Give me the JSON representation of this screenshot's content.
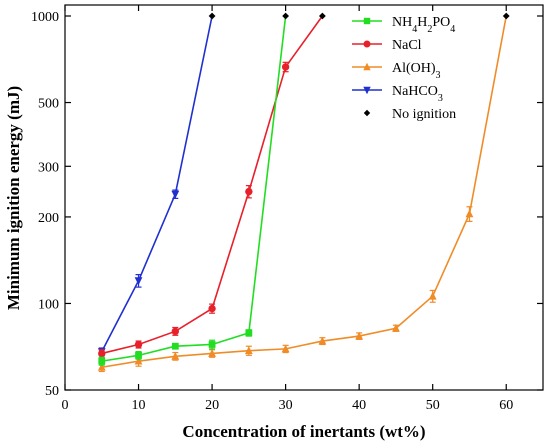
{
  "chart_data": {
    "type": "line",
    "title": "",
    "xlabel": "Concentration of inertants (wt%)",
    "ylabel": "Minimum ignition energy (mJ)",
    "xlim": [
      0,
      65
    ],
    "ylim": [
      50,
      1000
    ],
    "yscale": "log",
    "x_ticks": [
      0,
      10,
      20,
      30,
      40,
      50,
      60
    ],
    "y_ticks": [
      50,
      100,
      200,
      300,
      500,
      1000
    ],
    "grid": false,
    "legend_position": "top-right",
    "series": [
      {
        "name": "NH4H2PO4",
        "name_parts": [
          {
            "t": "NH"
          },
          {
            "t": "4",
            "sub": true
          },
          {
            "t": "H"
          },
          {
            "t": "2",
            "sub": true
          },
          {
            "t": "PO"
          },
          {
            "t": "4",
            "sub": true
          }
        ],
        "color": "#22dd22",
        "marker": "square",
        "x": [
          5,
          10,
          15,
          20,
          25,
          30
        ],
        "y": [
          63,
          66,
          71,
          72,
          79,
          1000
        ],
        "err": [
          2,
          2,
          1.5,
          2.5,
          2,
          0
        ],
        "ignition_end": false
      },
      {
        "name": "NaCl",
        "name_parts": [
          {
            "t": "NaCl"
          }
        ],
        "color": "#e8202a",
        "marker": "circle",
        "x": [
          5,
          10,
          15,
          20,
          25,
          30,
          35
        ],
        "y": [
          67,
          72,
          80,
          96,
          245,
          665,
          1000
        ],
        "err": [
          2,
          2,
          2.5,
          3.5,
          12,
          25,
          0
        ],
        "ignition_end": false
      },
      {
        "name": "Al(OH)3",
        "name_parts": [
          {
            "t": "Al(OH)"
          },
          {
            "t": "3",
            "sub": true
          }
        ],
        "color": "#f08c28",
        "marker": "triangle-up",
        "x": [
          5,
          10,
          15,
          20,
          25,
          30,
          35,
          40,
          45,
          50,
          55,
          60
        ],
        "y": [
          60,
          63,
          65.5,
          67,
          68.5,
          69.5,
          74,
          77,
          82,
          106,
          205,
          1000
        ],
        "err": [
          2,
          2.5,
          2,
          2,
          2.5,
          2,
          2,
          2,
          2,
          5,
          12,
          0
        ],
        "ignition_end": false
      },
      {
        "name": "NaHCO3",
        "name_parts": [
          {
            "t": "NaHCO"
          },
          {
            "t": "3",
            "sub": true
          }
        ],
        "color": "#2030d0",
        "marker": "triangle-down",
        "x": [
          5,
          10,
          15,
          20
        ],
        "y": [
          68,
          120,
          240,
          1000
        ],
        "err": [
          2,
          6,
          8,
          0
        ],
        "ignition_end": false
      },
      {
        "name": "No ignition",
        "name_parts": [
          {
            "t": "No ignition"
          }
        ],
        "color": "#000000",
        "marker": "diamond",
        "x": [
          20,
          30,
          35,
          60
        ],
        "y": [
          1000,
          1000,
          1000,
          1000
        ],
        "err": [
          0,
          0,
          0,
          0
        ],
        "no_line": true
      }
    ]
  }
}
